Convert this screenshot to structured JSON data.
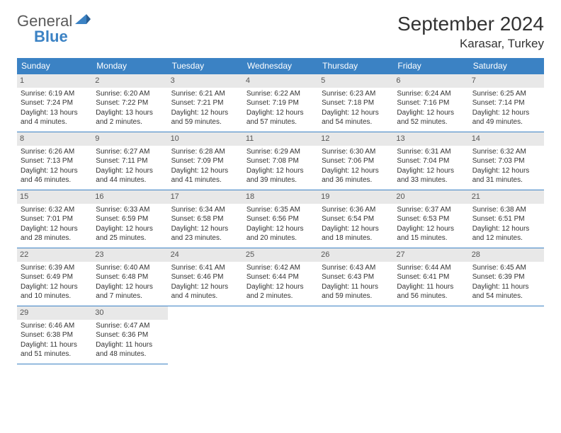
{
  "logo": {
    "line1": "General",
    "line2": "Blue"
  },
  "title": "September 2024",
  "location": "Karasar, Turkey",
  "colors": {
    "header_bg": "#3b82c4",
    "header_text": "#ffffff",
    "daynum_bg": "#e8e8e8",
    "border": "#3b82c4",
    "text": "#333333",
    "logo_gray": "#5a5a5a",
    "logo_blue": "#3b82c4"
  },
  "weekdays": [
    "Sunday",
    "Monday",
    "Tuesday",
    "Wednesday",
    "Thursday",
    "Friday",
    "Saturday"
  ],
  "days": [
    {
      "n": "1",
      "sunrise": "6:19 AM",
      "sunset": "7:24 PM",
      "dl": "13 hours and 4 minutes."
    },
    {
      "n": "2",
      "sunrise": "6:20 AM",
      "sunset": "7:22 PM",
      "dl": "13 hours and 2 minutes."
    },
    {
      "n": "3",
      "sunrise": "6:21 AM",
      "sunset": "7:21 PM",
      "dl": "12 hours and 59 minutes."
    },
    {
      "n": "4",
      "sunrise": "6:22 AM",
      "sunset": "7:19 PM",
      "dl": "12 hours and 57 minutes."
    },
    {
      "n": "5",
      "sunrise": "6:23 AM",
      "sunset": "7:18 PM",
      "dl": "12 hours and 54 minutes."
    },
    {
      "n": "6",
      "sunrise": "6:24 AM",
      "sunset": "7:16 PM",
      "dl": "12 hours and 52 minutes."
    },
    {
      "n": "7",
      "sunrise": "6:25 AM",
      "sunset": "7:14 PM",
      "dl": "12 hours and 49 minutes."
    },
    {
      "n": "8",
      "sunrise": "6:26 AM",
      "sunset": "7:13 PM",
      "dl": "12 hours and 46 minutes."
    },
    {
      "n": "9",
      "sunrise": "6:27 AM",
      "sunset": "7:11 PM",
      "dl": "12 hours and 44 minutes."
    },
    {
      "n": "10",
      "sunrise": "6:28 AM",
      "sunset": "7:09 PM",
      "dl": "12 hours and 41 minutes."
    },
    {
      "n": "11",
      "sunrise": "6:29 AM",
      "sunset": "7:08 PM",
      "dl": "12 hours and 39 minutes."
    },
    {
      "n": "12",
      "sunrise": "6:30 AM",
      "sunset": "7:06 PM",
      "dl": "12 hours and 36 minutes."
    },
    {
      "n": "13",
      "sunrise": "6:31 AM",
      "sunset": "7:04 PM",
      "dl": "12 hours and 33 minutes."
    },
    {
      "n": "14",
      "sunrise": "6:32 AM",
      "sunset": "7:03 PM",
      "dl": "12 hours and 31 minutes."
    },
    {
      "n": "15",
      "sunrise": "6:32 AM",
      "sunset": "7:01 PM",
      "dl": "12 hours and 28 minutes."
    },
    {
      "n": "16",
      "sunrise": "6:33 AM",
      "sunset": "6:59 PM",
      "dl": "12 hours and 25 minutes."
    },
    {
      "n": "17",
      "sunrise": "6:34 AM",
      "sunset": "6:58 PM",
      "dl": "12 hours and 23 minutes."
    },
    {
      "n": "18",
      "sunrise": "6:35 AM",
      "sunset": "6:56 PM",
      "dl": "12 hours and 20 minutes."
    },
    {
      "n": "19",
      "sunrise": "6:36 AM",
      "sunset": "6:54 PM",
      "dl": "12 hours and 18 minutes."
    },
    {
      "n": "20",
      "sunrise": "6:37 AM",
      "sunset": "6:53 PM",
      "dl": "12 hours and 15 minutes."
    },
    {
      "n": "21",
      "sunrise": "6:38 AM",
      "sunset": "6:51 PM",
      "dl": "12 hours and 12 minutes."
    },
    {
      "n": "22",
      "sunrise": "6:39 AM",
      "sunset": "6:49 PM",
      "dl": "12 hours and 10 minutes."
    },
    {
      "n": "23",
      "sunrise": "6:40 AM",
      "sunset": "6:48 PM",
      "dl": "12 hours and 7 minutes."
    },
    {
      "n": "24",
      "sunrise": "6:41 AM",
      "sunset": "6:46 PM",
      "dl": "12 hours and 4 minutes."
    },
    {
      "n": "25",
      "sunrise": "6:42 AM",
      "sunset": "6:44 PM",
      "dl": "12 hours and 2 minutes."
    },
    {
      "n": "26",
      "sunrise": "6:43 AM",
      "sunset": "6:43 PM",
      "dl": "11 hours and 59 minutes."
    },
    {
      "n": "27",
      "sunrise": "6:44 AM",
      "sunset": "6:41 PM",
      "dl": "11 hours and 56 minutes."
    },
    {
      "n": "28",
      "sunrise": "6:45 AM",
      "sunset": "6:39 PM",
      "dl": "11 hours and 54 minutes."
    },
    {
      "n": "29",
      "sunrise": "6:46 AM",
      "sunset": "6:38 PM",
      "dl": "11 hours and 51 minutes."
    },
    {
      "n": "30",
      "sunrise": "6:47 AM",
      "sunset": "6:36 PM",
      "dl": "11 hours and 48 minutes."
    }
  ],
  "labels": {
    "sunrise": "Sunrise:",
    "sunset": "Sunset:",
    "daylight": "Daylight:"
  },
  "grid": {
    "rows": 5,
    "cols": 7,
    "start_offset": 0,
    "total_days": 30
  }
}
